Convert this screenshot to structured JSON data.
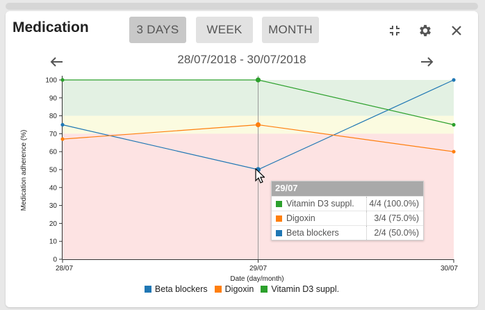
{
  "widget": {
    "title": "Medication",
    "range_buttons": [
      {
        "label": "3 DAYS",
        "active": true
      },
      {
        "label": "WEEK",
        "active": false
      },
      {
        "label": "MONTH",
        "active": false
      }
    ],
    "icons": [
      "collapse-icon",
      "gear-icon",
      "close-icon",
      "arrow-left-icon",
      "arrow-right-icon"
    ],
    "date_range": "28/07/2018 - 30/07/2018"
  },
  "chart_data": {
    "type": "line",
    "ylabel": "Medication adherence (%)",
    "xlabel": "Date (day/month)",
    "ylim": [
      0,
      100
    ],
    "yticks": [
      0,
      10,
      20,
      30,
      40,
      50,
      60,
      70,
      80,
      90,
      100
    ],
    "categories": [
      "28/07",
      "29/07",
      "30/07"
    ],
    "bands": [
      {
        "from": 80,
        "to": 100,
        "color": "#e3f1e3"
      },
      {
        "from": 70,
        "to": 80,
        "color": "#fbfbe0"
      },
      {
        "from": 0,
        "to": 70,
        "color": "#fde3e3"
      }
    ],
    "series": [
      {
        "name": "Beta blockers",
        "color": "#1f77b4",
        "values": [
          75,
          50,
          100
        ]
      },
      {
        "name": "Digoxin",
        "color": "#ff7f0e",
        "values": [
          67,
          75,
          60
        ]
      },
      {
        "name": "Vitamin D3 suppl.",
        "color": "#2ca02c",
        "values": [
          100,
          100,
          75
        ]
      }
    ],
    "grid": false,
    "legend_position": "bottom"
  },
  "tooltip": {
    "date": "29/07",
    "rows": [
      {
        "name": "Vitamin D3 suppl.",
        "value": "4/4 (100.0%)",
        "color": "#2ca02c"
      },
      {
        "name": "Digoxin",
        "value": "3/4 (75.0%)",
        "color": "#ff7f0e"
      },
      {
        "name": "Beta blockers",
        "value": "2/4 (50.0%)",
        "color": "#1f77b4"
      }
    ]
  }
}
